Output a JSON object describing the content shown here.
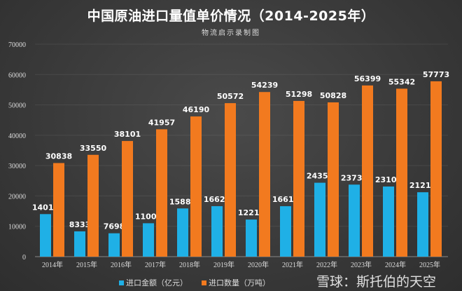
{
  "chart_data": {
    "type": "bar",
    "title": "中国原油进口量值单价情况（2014-2025年）",
    "subtitle": "物流启示录制图",
    "categories": [
      "2014年",
      "2015年",
      "2016年",
      "2017年",
      "2018年",
      "2019年",
      "2020年",
      "2021年",
      "2022年",
      "2023年",
      "2024年",
      "2025年"
    ],
    "series": [
      {
        "name": "进口金额（亿元）",
        "color": "#1fb0e6",
        "values": [
          14017,
          8333,
          7698,
          11003,
          15882,
          16627,
          12218,
          16618,
          24350,
          23733,
          23108,
          21217
        ]
      },
      {
        "name": "进口数量（万吨）",
        "color": "#f27a1f",
        "values": [
          30838,
          33550,
          38101,
          41957,
          46190,
          50572,
          54239,
          51298,
          50828,
          56399,
          55342,
          57773
        ]
      }
    ],
    "ylim": [
      0,
      70000
    ],
    "yticks": [
      0,
      10000,
      20000,
      30000,
      40000,
      50000,
      60000,
      70000
    ],
    "grid": true,
    "legend": "bottom",
    "data_labels": true
  },
  "watermark": "雪球：斯托伯的天空"
}
